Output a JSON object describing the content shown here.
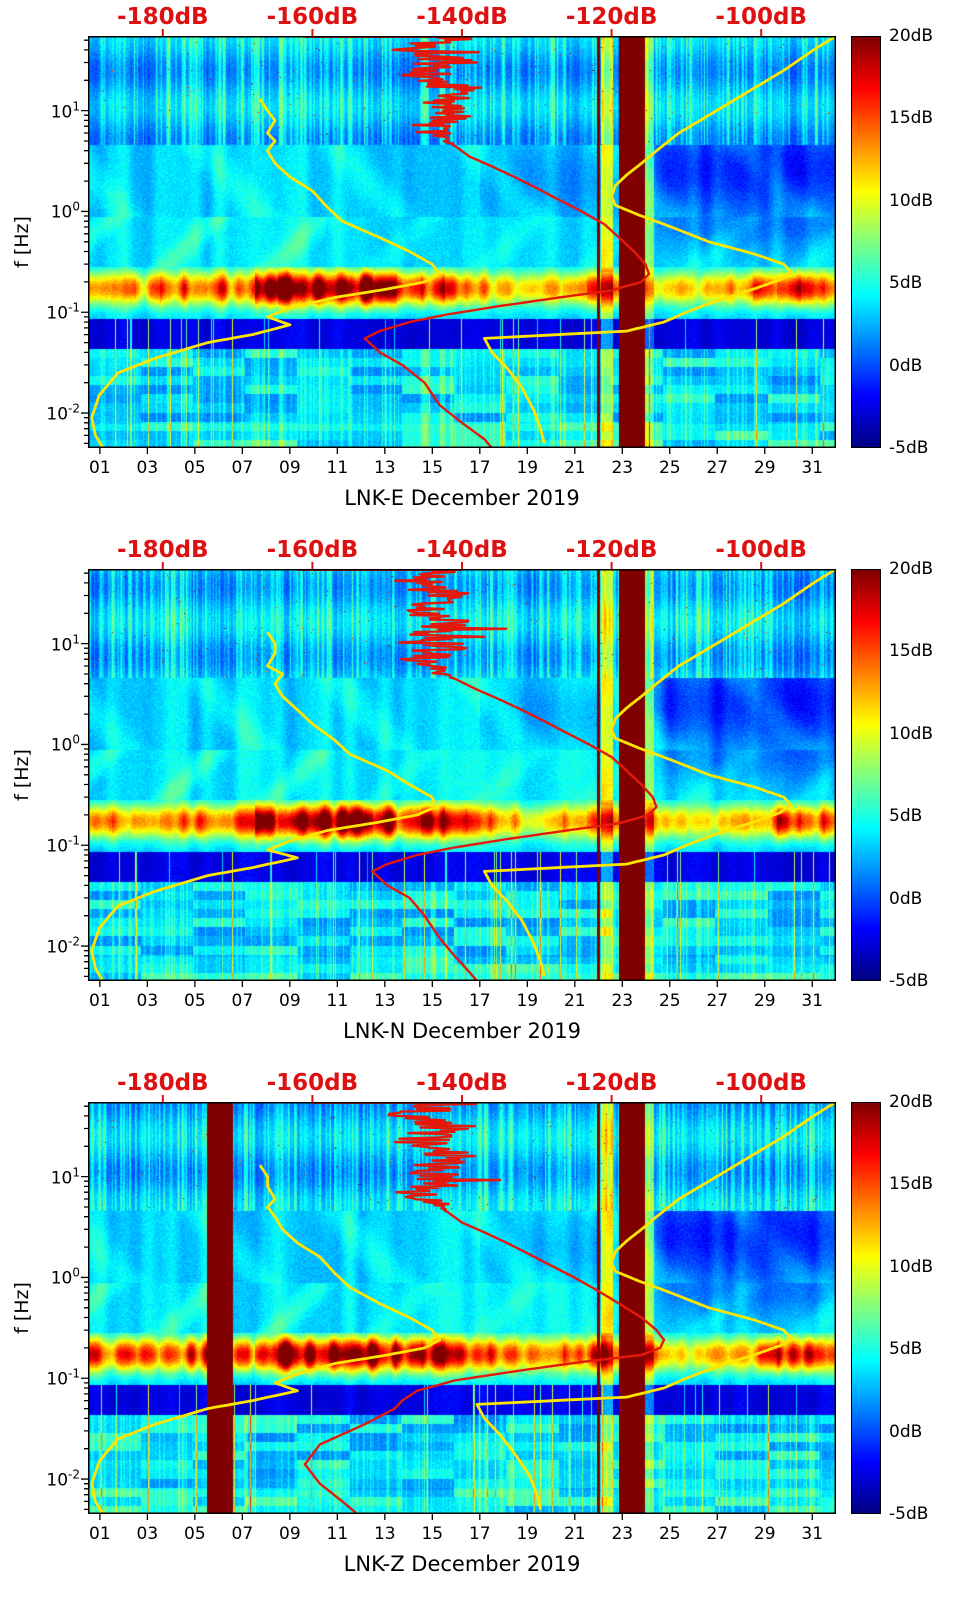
{
  "chart_data": {
    "type": "heatmap",
    "description": "Three stacked spectrograms of relative seismic PSD (dB) vs day of December 2019 and frequency, with percentile PSD curves overlaid against a secondary top dB axis",
    "shared": {
      "x_axis": {
        "range": [
          0,
          31.5
        ],
        "unit": "days_since_dec01",
        "tick_values": [
          1,
          3,
          5,
          7,
          9,
          11,
          13,
          15,
          17,
          19,
          21,
          23,
          25,
          27,
          29,
          31
        ],
        "tick_labels": [
          "01",
          "03",
          "05",
          "07",
          "09",
          "11",
          "13",
          "15",
          "17",
          "19",
          "21",
          "23",
          "25",
          "27",
          "29",
          "31"
        ]
      },
      "y_axis": {
        "label": "f [Hz]",
        "scale": "log",
        "range_hz": [
          0.0045,
          55
        ],
        "ticks": [
          {
            "base": "10",
            "exp": "1",
            "value_hz": 10
          },
          {
            "base": "10",
            "exp": "0",
            "value_hz": 1
          },
          {
            "base": "10",
            "exp": "-1",
            "value_hz": 0.1
          },
          {
            "base": "10",
            "exp": "-2",
            "value_hz": 0.01
          }
        ]
      },
      "top_axis": {
        "unit": "dB",
        "range": [
          -190,
          -90
        ],
        "tick_values": [
          -180,
          -160,
          -140,
          -120,
          -100
        ],
        "tick_labels": [
          "-180dB",
          "-160dB",
          "-140dB",
          "-120dB",
          "-100dB"
        ],
        "color": "#dd1111"
      },
      "colorbar": {
        "range_db": [
          -5,
          20
        ],
        "colormap": "jet",
        "tick_values": [
          20,
          15,
          10,
          5,
          0,
          -5
        ],
        "tick_labels": [
          "20dB",
          "15dB",
          "10dB",
          "5dB",
          "0dB",
          "-5dB"
        ]
      },
      "colors": {
        "curve_yellow": "#ffe600",
        "curve_red": "#e4190c",
        "gap_maroon": "#7f0000"
      }
    },
    "panels": [
      {
        "id": "LNK-E",
        "title": "LNK-E December 2019",
        "seed": 11,
        "data_gap_day_ranges": [
          [
            21.4,
            21.52
          ],
          [
            22.32,
            23.45
          ]
        ],
        "microseism_level_by_day": [
          0.45,
          0.5,
          0.42,
          0.5,
          0.58,
          0.52,
          0.48,
          0.75,
          0.95,
          1.0,
          0.92,
          0.96,
          0.8,
          0.62,
          0.72,
          0.58,
          0.5,
          0.42,
          0.36,
          0.32,
          0.42,
          0.55,
          0.62,
          0.4,
          0.32,
          0.3,
          0.34,
          0.4,
          0.52,
          0.68,
          0.58,
          0.5
        ],
        "series": [
          {
            "name": "low-percentile PSD (yellow, left)",
            "color": "yellow",
            "freq_hz": [
              13,
              10,
              8,
              6,
              5,
              4,
              3,
              2.2,
              1.6,
              1.1,
              0.8,
              0.55,
              0.4,
              0.3,
              0.24,
              0.2,
              0.17,
              0.14,
              0.11,
              0.09,
              0.075,
              0.06,
              0.05,
              0.035,
              0.025,
              0.015,
              0.009,
              0.006,
              0.0045
            ],
            "psd_db": [
              -167,
              -166,
              -165,
              -166,
              -165,
              -166,
              -165,
              -163,
              -160,
              -158,
              -156,
              -151,
              -147,
              -144,
              -143,
              -145,
              -150,
              -157,
              -163,
              -166,
              -163,
              -168,
              -174,
              -181,
              -186,
              -188.5,
              -189.5,
              -189,
              -188
            ]
          },
          {
            "name": "median PSD (red)",
            "color": "red",
            "jitter_above_hz": 4.5,
            "jitter_db": 4,
            "freq_hz": [
              54,
              54,
              50,
              40,
              30,
              22,
              16,
              12,
              9,
              7,
              5.5,
              4.5,
              3.5,
              2.8,
              2.2,
              1.7,
              1.3,
              1.0,
              0.75,
              0.55,
              0.4,
              0.3,
              0.24,
              0.2,
              0.165,
              0.14,
              0.115,
              0.095,
              0.08,
              0.065,
              0.055,
              0.04,
              0.03,
              0.02,
              0.012,
              0.008,
              0.0055,
              0.0045
            ],
            "psd_db": [
              -161,
              -139,
              -143,
              -146,
              -141,
              -145,
              -140,
              -144,
              -142,
              -145,
              -143,
              -141,
              -139,
              -136,
              -133,
              -130,
              -127,
              -124,
              -121,
              -119,
              -117,
              -115.5,
              -115,
              -116,
              -120,
              -127,
              -135,
              -142,
              -147,
              -151,
              -153,
              -151,
              -148,
              -145,
              -143,
              -140,
              -137,
              -136
            ]
          },
          {
            "name": "high-percentile PSD (yellow, right)",
            "color": "yellow",
            "freq_hz": [
              55,
              40,
              25,
              15,
              9,
              6,
              4,
              3,
              2.3,
              1.8,
              1.4,
              1.15,
              0.9,
              0.7,
              0.5,
              0.38,
              0.3,
              0.25,
              0.21,
              0.17,
              0.13,
              0.1,
              0.08,
              0.065,
              0.055,
              0.04,
              0.028,
              0.018,
              0.011,
              0.007,
              0.005
            ],
            "psd_db": [
              -90,
              -93,
              -97,
              -102,
              -107,
              -111,
              -114,
              -116,
              -118,
              -119.5,
              -120,
              -119.5,
              -116,
              -112,
              -107,
              -101,
              -97,
              -96,
              -97.5,
              -101,
              -106,
              -110,
              -113,
              -118,
              -137,
              -136,
              -134,
              -132,
              -130.5,
              -129.5,
              -129
            ]
          }
        ]
      },
      {
        "id": "LNK-N",
        "title": "LNK-N December 2019",
        "seed": 22,
        "data_gap_day_ranges": [
          [
            21.4,
            21.52
          ],
          [
            22.32,
            23.45
          ]
        ],
        "microseism_level_by_day": [
          0.42,
          0.48,
          0.44,
          0.52,
          0.56,
          0.5,
          0.46,
          0.72,
          0.92,
          1.0,
          0.9,
          0.98,
          0.82,
          0.6,
          0.7,
          0.56,
          0.48,
          0.4,
          0.35,
          0.3,
          0.4,
          0.52,
          0.6,
          0.38,
          0.3,
          0.3,
          0.33,
          0.4,
          0.5,
          0.66,
          0.56,
          0.48
        ],
        "series": [
          {
            "name": "low-percentile PSD (yellow, left)",
            "color": "yellow",
            "freq_hz": [
              13,
              10,
              8,
              6,
              5,
              4,
              3,
              2.2,
              1.6,
              1.1,
              0.8,
              0.55,
              0.4,
              0.3,
              0.24,
              0.2,
              0.17,
              0.14,
              0.11,
              0.09,
              0.075,
              0.06,
              0.05,
              0.035,
              0.025,
              0.015,
              0.009,
              0.006,
              0.0045
            ],
            "psd_db": [
              -166,
              -165,
              -165,
              -166,
              -164,
              -165,
              -164,
              -162,
              -160,
              -157,
              -155,
              -150,
              -147,
              -144,
              -143.5,
              -146,
              -151,
              -158,
              -163,
              -166,
              -162,
              -168,
              -174,
              -181,
              -186,
              -188.5,
              -189.5,
              -189,
              -188
            ]
          },
          {
            "name": "median PSD (red)",
            "color": "red",
            "jitter_above_hz": 4.5,
            "jitter_db": 4,
            "freq_hz": [
              54,
              54,
              50,
              40,
              30,
              22,
              16,
              12,
              9,
              7,
              5.5,
              4.5,
              3.5,
              2.8,
              2.2,
              1.7,
              1.3,
              1.0,
              0.75,
              0.55,
              0.4,
              0.3,
              0.24,
              0.2,
              0.165,
              0.14,
              0.115,
              0.095,
              0.08,
              0.065,
              0.055,
              0.04,
              0.03,
              0.02,
              0.012,
              0.008,
              0.0055,
              0.0045
            ],
            "psd_db": [
              -162,
              -140,
              -144,
              -146,
              -142,
              -145,
              -141,
              -144,
              -143,
              -145,
              -143,
              -141,
              -138,
              -135,
              -132,
              -129,
              -126,
              -123,
              -120,
              -118,
              -116,
              -114.5,
              -114,
              -115,
              -119,
              -126,
              -134,
              -141,
              -146,
              -150,
              -152,
              -150,
              -147,
              -145,
              -143,
              -141,
              -139,
              -138
            ]
          },
          {
            "name": "high-percentile PSD (yellow, right)",
            "color": "yellow",
            "freq_hz": [
              55,
              40,
              25,
              15,
              9,
              6,
              4,
              3,
              2.3,
              1.8,
              1.4,
              1.15,
              0.9,
              0.7,
              0.5,
              0.38,
              0.3,
              0.25,
              0.21,
              0.17,
              0.13,
              0.1,
              0.08,
              0.065,
              0.055,
              0.04,
              0.028,
              0.018,
              0.011,
              0.007,
              0.005
            ],
            "psd_db": [
              -90,
              -93,
              -97,
              -102,
              -107,
              -111,
              -114,
              -116,
              -118,
              -119.5,
              -120,
              -119.5,
              -116,
              -112,
              -107,
              -101,
              -97,
              -96,
              -97.5,
              -101,
              -106,
              -110,
              -113,
              -118,
              -137,
              -136,
              -134,
              -132,
              -130.5,
              -129.5,
              -129
            ]
          }
        ]
      },
      {
        "id": "LNK-Z",
        "title": "LNK-Z December 2019",
        "seed": 33,
        "data_gap_day_ranges": [
          [
            5.0,
            6.1
          ],
          [
            21.4,
            21.52
          ],
          [
            22.32,
            23.45
          ]
        ],
        "microseism_level_by_day": [
          0.5,
          0.52,
          0.45,
          0.55,
          0.6,
          0.55,
          0.5,
          0.8,
          1.0,
          1.0,
          0.95,
          1.0,
          0.85,
          0.65,
          0.75,
          0.6,
          0.52,
          0.45,
          0.38,
          0.34,
          0.45,
          0.6,
          0.65,
          0.42,
          0.34,
          0.32,
          0.36,
          0.42,
          0.55,
          0.7,
          0.6,
          0.52
        ],
        "series": [
          {
            "name": "low-percentile PSD (yellow, left)",
            "color": "yellow",
            "freq_hz": [
              13,
              10,
              8,
              6,
              5,
              4,
              3,
              2.2,
              1.6,
              1.1,
              0.8,
              0.55,
              0.4,
              0.3,
              0.24,
              0.2,
              0.17,
              0.14,
              0.11,
              0.09,
              0.075,
              0.06,
              0.05,
              0.035,
              0.025,
              0.015,
              0.009,
              0.006,
              0.0045
            ],
            "psd_db": [
              -167,
              -166,
              -166,
              -165,
              -166,
              -165,
              -164,
              -162,
              -159,
              -157,
              -155,
              -151,
              -147,
              -144,
              -143,
              -145,
              -150,
              -157,
              -162,
              -165,
              -162,
              -168,
              -174,
              -181,
              -186,
              -188.5,
              -189.5,
              -189,
              -188
            ]
          },
          {
            "name": "median PSD (red)",
            "color": "red",
            "jitter_above_hz": 4.5,
            "jitter_db": 4,
            "freq_hz": [
              54,
              54,
              50,
              40,
              30,
              22,
              16,
              12,
              9,
              7,
              5.5,
              4.5,
              3.5,
              2.8,
              2.2,
              1.7,
              1.3,
              1.0,
              0.75,
              0.55,
              0.4,
              0.3,
              0.24,
              0.2,
              0.17,
              0.145,
              0.12,
              0.095,
              0.075,
              0.06,
              0.05,
              0.035,
              0.022,
              0.014,
              0.009,
              0.006,
              0.0045
            ],
            "psd_db": [
              -160,
              -140,
              -144,
              -147,
              -142,
              -146,
              -141,
              -144,
              -143,
              -146,
              -144,
              -142,
              -140,
              -137,
              -134,
              -131,
              -128,
              -125,
              -122,
              -119,
              -116,
              -114,
              -113,
              -113.5,
              -116,
              -124,
              -132,
              -141,
              -146,
              -148,
              -149,
              -153,
              -159,
              -161,
              -159,
              -156,
              -154
            ]
          },
          {
            "name": "high-percentile PSD (yellow, right)",
            "color": "yellow",
            "freq_hz": [
              55,
              40,
              25,
              15,
              9,
              6,
              4,
              3,
              2.3,
              1.8,
              1.4,
              1.15,
              0.9,
              0.7,
              0.5,
              0.38,
              0.3,
              0.25,
              0.21,
              0.17,
              0.13,
              0.1,
              0.08,
              0.065,
              0.055,
              0.04,
              0.028,
              0.018,
              0.011,
              0.007,
              0.005
            ],
            "psd_db": [
              -90,
              -93,
              -97,
              -102,
              -107,
              -111,
              -114,
              -116,
              -118,
              -119.5,
              -120,
              -119.5,
              -116,
              -112,
              -107,
              -101,
              -97,
              -96,
              -97.5,
              -101,
              -106,
              -110,
              -113,
              -118,
              -138,
              -137,
              -135,
              -133,
              -131,
              -130,
              -129.5
            ]
          }
        ]
      }
    ]
  }
}
